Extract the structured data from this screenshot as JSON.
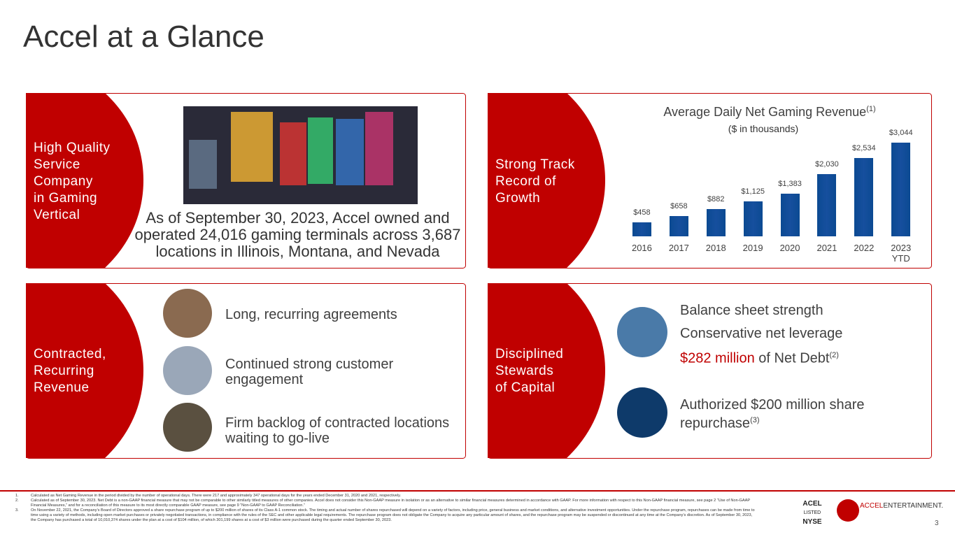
{
  "title": "Accel at a Glance",
  "terminals": {
    "label": "High Quality\nService\nCompany\nin Gaming\nVertical",
    "text": "As of September 30, 2023, Accel owned and operated 24,016 gaming terminals across 3,687 locations in Illinois, Montana, and Nevada"
  },
  "growth": {
    "label": "Strong Track\nRecord of\nGrowth"
  },
  "chart_data": {
    "type": "bar",
    "title": "Average Daily Net Gaming Revenue",
    "title_note": "(1)",
    "subtitle": "($ in thousands)",
    "categories": [
      "2016",
      "2017",
      "2018",
      "2019",
      "2020",
      "2021",
      "2022",
      "2023 YTD"
    ],
    "values": [
      458,
      658,
      882,
      1125,
      1383,
      2030,
      2534,
      3044
    ],
    "value_labels": [
      "$458",
      "$658",
      "$882",
      "$1,125",
      "$1,383",
      "$2,030",
      "$2,534",
      "$3,044"
    ],
    "color": "#0b4a92"
  },
  "contracted": {
    "label": "Contracted,\nRecurring\nRevenue",
    "items": [
      "Long, recurring agreements",
      "Continued strong customer engagement",
      "Firm backlog of contracted locations waiting to go-live"
    ]
  },
  "capital": {
    "label": "Disciplined\nStewards\nof Capital",
    "items": [
      "Balance sheet strength",
      "Conservative net leverage"
    ],
    "net_debt": {
      "amount": "$282 million",
      "text": "of Net Debt",
      "note": "(2)"
    },
    "repurchase": {
      "text": "Authorized $200 million share repurchase",
      "note": "(3)"
    }
  },
  "footnotes": [
    {
      "number": "1.",
      "text": "Calculated as Net Gaming Revenue in the period divided by the number of operational days. There were 217 and approximately 347 operational days for the years ended December 31, 2020 and 2021, respectively."
    },
    {
      "number": "2.",
      "text": "Calculated as of September 30, 2023. Net Debt is a non-GAAP financial measure that may not be comparable to other similarly titled measures of other companies. Accel does not consider this Non-GAAP measure in isolation or as an alternative to similar financial measures determined in accordance with GAAP. For more information with respect to this Non-GAAP financial measure, see page 2 “Use of Non-GAAP Financial Measures,” and for a reconciliation of this measure to its most directly comparable GAAP measure, see page 9 “Non-GAAP to GAAP Reconciliation.”"
    },
    {
      "number": "3.",
      "text": "On November 22, 2021, the Company’s Board of Directors approved a share repurchase program of up to $200 million of shares of its Class A-1 common stock. The timing and actual number of shares repurchased will depend on a variety of factors, including price, general business and market conditions, and alternative investment opportunities. Under the repurchase program, repurchases can be made from time to time using a variety of methods, including open market purchases or privately negotiated transactions, in compliance with the rules of the SEC and other applicable legal requirements. The repurchase program does not obligate the Company to acquire any particular amount of shares, and the repurchase program may be suspended or discontinued at any time at the Company’s discretion. As of September 30, 2023, the Company has purchased a total of 10,010,374 shares under the plan at a cost of $104 million, of which 301,199 shares at a cost of $3 million were purchased during the quarter ended September 30, 2023."
    }
  ],
  "logos": {
    "ticker": "ACEL",
    "listed": "LISTED",
    "exchange": "NYSE",
    "brand_a": "ACCEL",
    "brand_b": "ENTERTAINMENT."
  },
  "page_number": "3"
}
